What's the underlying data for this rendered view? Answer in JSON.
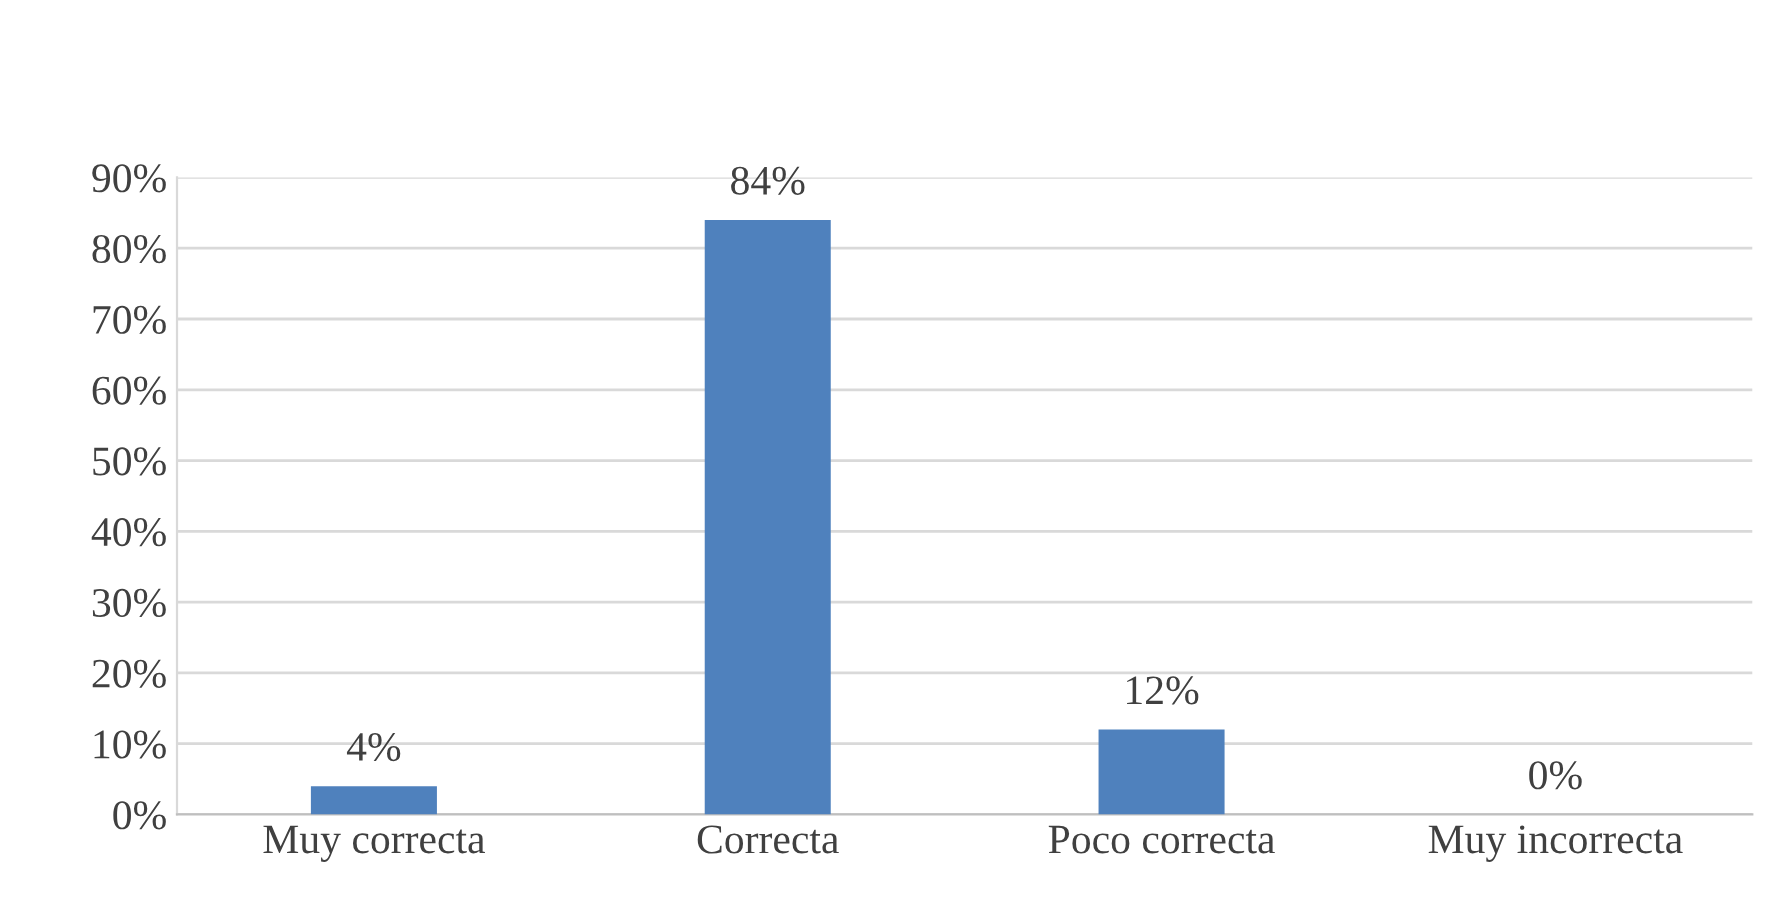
{
  "chart_data": {
    "type": "bar",
    "categories": [
      "Muy correcta",
      "Correcta",
      "Poco correcta",
      "Muy incorrecta"
    ],
    "values": [
      4,
      84,
      12,
      0
    ],
    "value_labels": [
      "4%",
      "84%",
      "12%",
      "0%"
    ],
    "color": "#4f81bd",
    "ylim": [
      0,
      90
    ],
    "yticks": [
      {
        "value": 0,
        "label": "0%"
      },
      {
        "value": 10,
        "label": "10%"
      },
      {
        "value": 20,
        "label": "20%"
      },
      {
        "value": 30,
        "label": "30%"
      },
      {
        "value": 40,
        "label": "40%"
      },
      {
        "value": 50,
        "label": "50%"
      },
      {
        "value": 60,
        "label": "60%"
      },
      {
        "value": 70,
        "label": "70%"
      },
      {
        "value": 80,
        "label": "80%"
      },
      {
        "value": 90,
        "label": "90%"
      }
    ],
    "grid": "y",
    "legend": false
  }
}
